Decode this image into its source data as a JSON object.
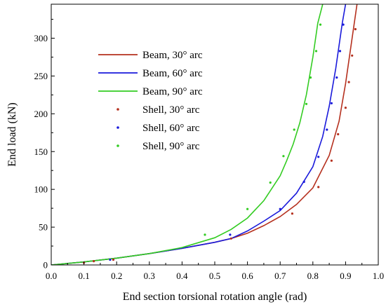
{
  "chart_data": {
    "type": "line",
    "title": "",
    "xlabel": "End section torsional rotation angle (rad)",
    "ylabel": "End load (kN)",
    "xlim": [
      0.0,
      1.0
    ],
    "ylim": [
      0,
      345
    ],
    "x_ticks": [
      "0.0",
      "0.1",
      "0.2",
      "0.3",
      "0.4",
      "0.5",
      "0.6",
      "0.7",
      "0.8",
      "0.9",
      "1.0"
    ],
    "y_ticks": [
      "0",
      "50",
      "100",
      "150",
      "200",
      "250",
      "300"
    ],
    "grid": false,
    "legend_position": "upper-left",
    "series": [
      {
        "name": "Beam, 30° arc",
        "kind": "line",
        "color": "#b5301e",
        "x": [
          0.0,
          0.1,
          0.2,
          0.3,
          0.4,
          0.5,
          0.55,
          0.6,
          0.65,
          0.7,
          0.75,
          0.8,
          0.85,
          0.88,
          0.9,
          0.92,
          0.935
        ],
        "y": [
          0,
          4,
          9,
          15,
          22,
          30,
          35,
          42,
          52,
          64,
          80,
          102,
          145,
          190,
          240,
          300,
          345
        ]
      },
      {
        "name": "Beam, 60° arc",
        "kind": "line",
        "color": "#1a1adb",
        "x": [
          0.0,
          0.1,
          0.2,
          0.3,
          0.4,
          0.5,
          0.55,
          0.6,
          0.65,
          0.7,
          0.75,
          0.8,
          0.83,
          0.85,
          0.87,
          0.89,
          0.9
        ],
        "y": [
          0,
          4,
          9,
          15,
          22,
          30,
          35,
          45,
          58,
          72,
          95,
          130,
          170,
          210,
          260,
          320,
          345
        ]
      },
      {
        "name": "Beam, 90° arc",
        "kind": "line",
        "color": "#33cc22",
        "x": [
          0.0,
          0.1,
          0.2,
          0.3,
          0.4,
          0.5,
          0.55,
          0.6,
          0.65,
          0.7,
          0.72,
          0.74,
          0.76,
          0.78,
          0.8,
          0.815,
          0.83
        ],
        "y": [
          0,
          4,
          9,
          15,
          23,
          36,
          47,
          62,
          85,
          118,
          138,
          160,
          188,
          225,
          275,
          320,
          345
        ]
      },
      {
        "name": "Shell,  30° arc",
        "kind": "scatter",
        "color": "#b5301e",
        "x": [
          0.1,
          0.13,
          0.19,
          0.55,
          0.737,
          0.817,
          0.857,
          0.877,
          0.9,
          0.91,
          0.92,
          0.93
        ],
        "y": [
          3,
          5,
          7,
          35,
          68,
          103,
          138,
          173,
          208,
          242,
          277,
          312
        ]
      },
      {
        "name": "Shell,  60° arc",
        "kind": "scatter",
        "color": "#1a1adb",
        "x": [
          0.18,
          0.547,
          0.7,
          0.773,
          0.817,
          0.843,
          0.857,
          0.873,
          0.883,
          0.893
        ],
        "y": [
          7,
          40,
          74,
          110,
          143,
          179,
          214,
          248,
          283,
          318
        ]
      },
      {
        "name": "Shell,  90° arc",
        "kind": "scatter",
        "color": "#33cc22",
        "x": [
          0.47,
          0.6,
          0.67,
          0.71,
          0.743,
          0.78,
          0.793,
          0.81,
          0.823
        ],
        "y": [
          40,
          74,
          109,
          144,
          179,
          213,
          248,
          283,
          318
        ]
      }
    ]
  }
}
